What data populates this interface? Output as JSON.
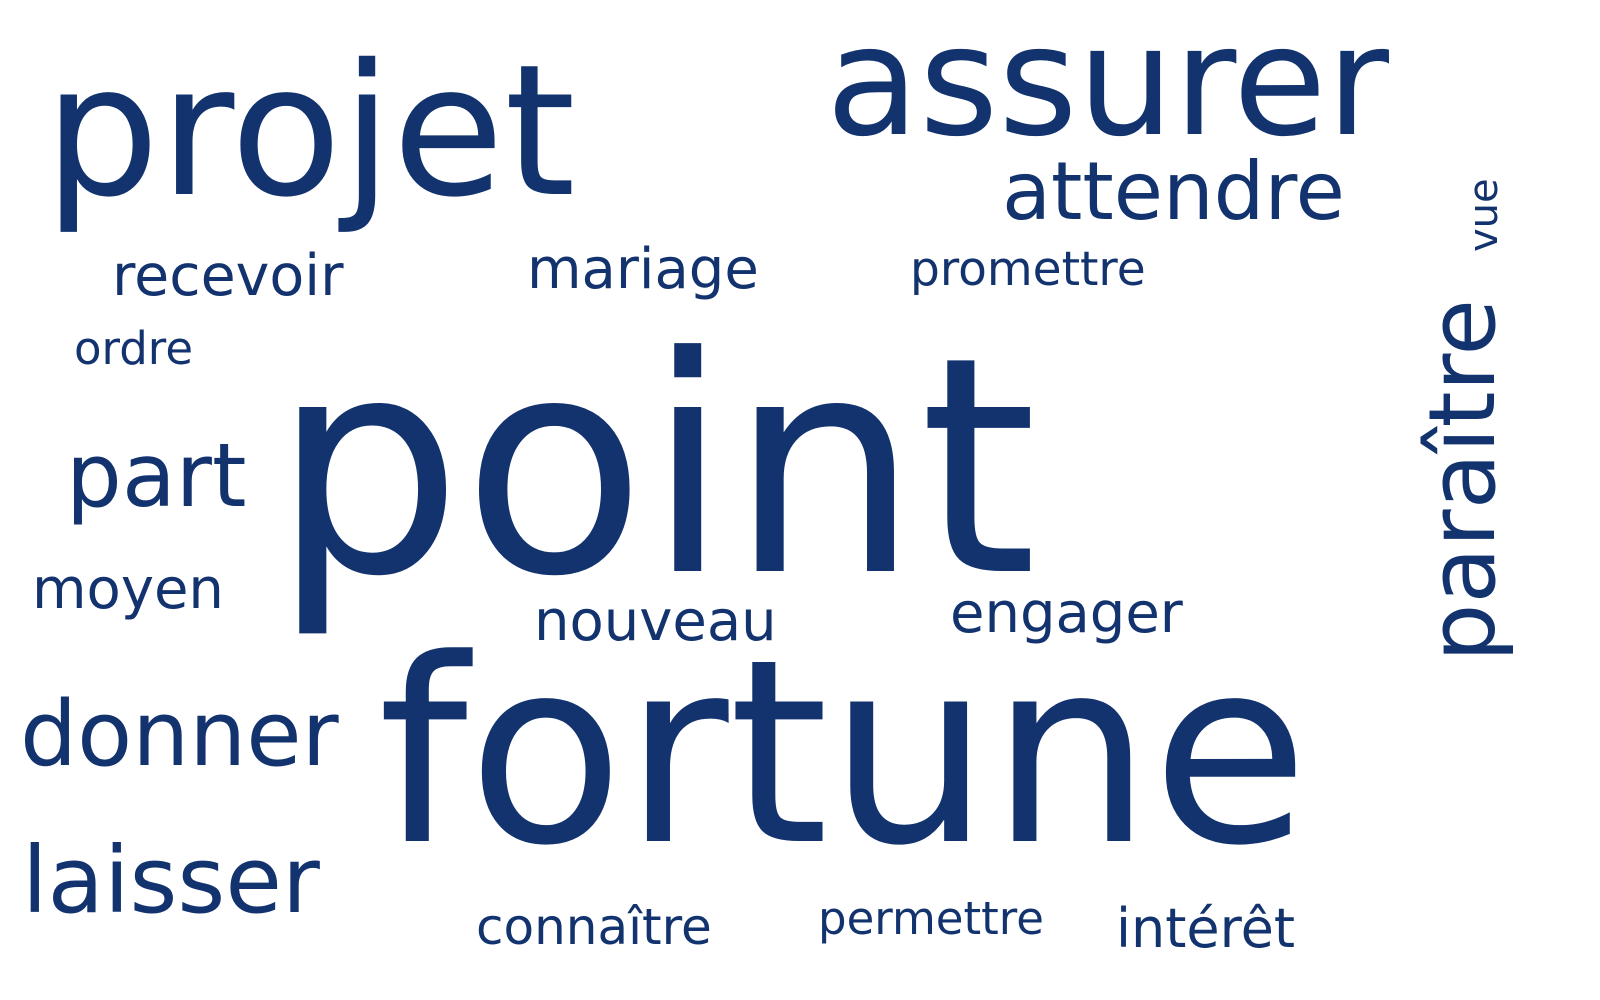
{
  "cloud": {
    "text_color": "#13336f",
    "background": "#ffffff",
    "words": [
      {
        "text": "point"
      },
      {
        "text": "fortune"
      },
      {
        "text": "projet"
      },
      {
        "text": "assurer"
      },
      {
        "text": "attendre"
      },
      {
        "text": "paraître"
      },
      {
        "text": "donner"
      },
      {
        "text": "laisser"
      },
      {
        "text": "part"
      },
      {
        "text": "recevoir"
      },
      {
        "text": "mariage"
      },
      {
        "text": "promettre"
      },
      {
        "text": "nouveau"
      },
      {
        "text": "engager"
      },
      {
        "text": "moyen"
      },
      {
        "text": "ordre"
      },
      {
        "text": "connaître"
      },
      {
        "text": "permettre"
      },
      {
        "text": "intérêt"
      },
      {
        "text": "vue"
      }
    ]
  }
}
